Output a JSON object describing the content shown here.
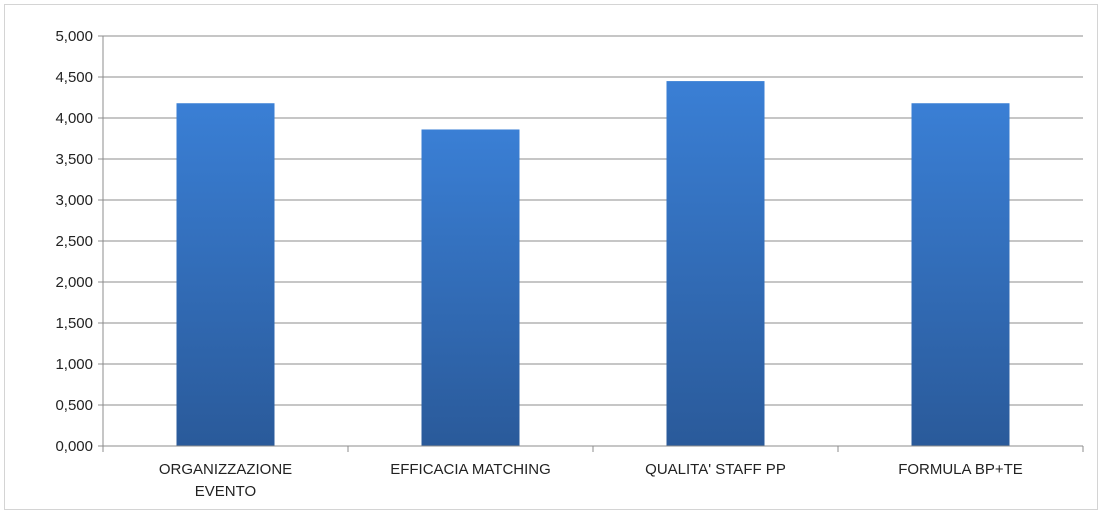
{
  "chart_data": {
    "type": "bar",
    "categories": [
      [
        "ORGANIZZAZIONE",
        "EVENTO"
      ],
      [
        "EFFICACIA MATCHING"
      ],
      [
        "QUALITA' STAFF PP"
      ],
      [
        "FORMULA BP+TE"
      ]
    ],
    "values": [
      4.18,
      3.86,
      4.45,
      4.18
    ],
    "ylim": [
      0,
      5
    ],
    "yticks": [
      0,
      0.5,
      1,
      1.5,
      2,
      2.5,
      3,
      3.5,
      4,
      4.5,
      5
    ],
    "ytick_labels": [
      "0,000",
      "0,500",
      "1,000",
      "1,500",
      "2,000",
      "2,500",
      "3,000",
      "3,500",
      "4,000",
      "4,500",
      "5,000"
    ],
    "grid": true,
    "legend": "none",
    "title": "",
    "xlabel": "",
    "ylabel": "",
    "colors": {
      "bar_top": "#3a7fd5",
      "bar_bottom": "#2a5a9a",
      "grid": "#8c8c8c",
      "axis": "#8c8c8c"
    }
  }
}
